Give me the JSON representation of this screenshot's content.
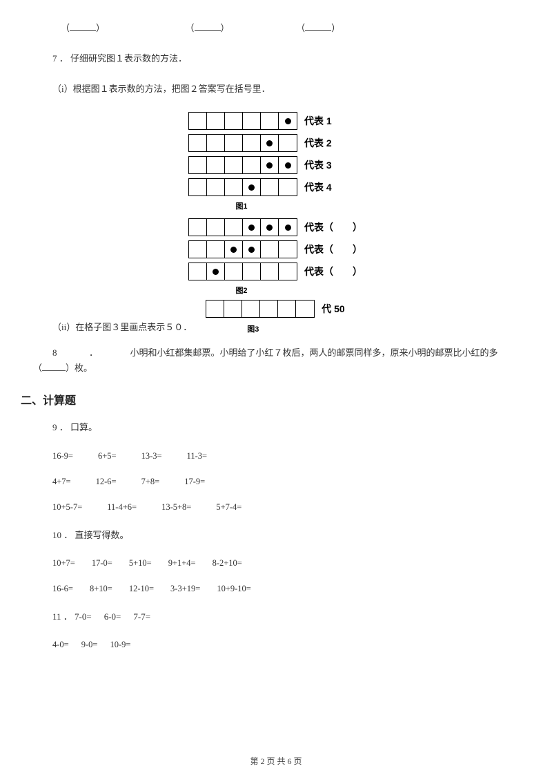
{
  "top_blanks": {
    "open": "（",
    "close": "）"
  },
  "q7": {
    "number": "7",
    "dot": "．",
    "title": "仔细研究图１表示数的方法．",
    "part_i": "（i）根据图１表示数的方法，把图２答案写在括号里．",
    "part_ii": "（ii）在格子图３里画点表示５０．",
    "rows_fig1": [
      {
        "dots": [
          0,
          0,
          0,
          0,
          0,
          1
        ],
        "label": "代表 1"
      },
      {
        "dots": [
          0,
          0,
          0,
          0,
          1,
          0
        ],
        "label": "代表 2"
      },
      {
        "dots": [
          0,
          0,
          0,
          0,
          1,
          1
        ],
        "label": "代表 3"
      },
      {
        "dots": [
          0,
          0,
          0,
          1,
          0,
          0
        ],
        "label": "代表 4"
      }
    ],
    "caption1": "图1",
    "rows_fig2": [
      {
        "dots": [
          0,
          0,
          0,
          1,
          1,
          1
        ],
        "label": "代表（　　）"
      },
      {
        "dots": [
          0,
          0,
          1,
          1,
          0,
          0
        ],
        "label": "代表（　　）"
      },
      {
        "dots": [
          0,
          1,
          0,
          0,
          0,
          0
        ],
        "label": "代表（　　）"
      }
    ],
    "caption2": "图2",
    "row_fig3": {
      "dots": [
        0,
        0,
        0,
        0,
        0,
        0
      ],
      "label": "代 50"
    },
    "caption3": "图3"
  },
  "q8": {
    "number": "8",
    "dot": "．",
    "text_before": "小明和小红都集邮票。小明给了小红７枚后，两人的邮票同样多，原来小明的邮票比小红的多",
    "text_after": "）枚。",
    "open": "（"
  },
  "section2": "二、计算题",
  "q9": {
    "number": "9",
    "dot": "．",
    "title": "口算。",
    "rows": [
      [
        "16-9=",
        "6+5=",
        "13-3=",
        "11-3="
      ],
      [
        "4+7=",
        "12-6=",
        "7+8=",
        "17-9="
      ],
      [
        "10+5-7=",
        "11-4+6=",
        "13-5+8=",
        "5+7-4="
      ]
    ]
  },
  "q10": {
    "number": "10",
    "dot": "．",
    "title": "直接写得数。",
    "rows": [
      [
        "10+7=",
        "17-0=",
        "5+10=",
        "9+1+4=",
        "8-2+10="
      ],
      [
        "16-6=",
        "8+10=",
        "12-10=",
        "3-3+19=",
        "10+9-10="
      ]
    ]
  },
  "q11": {
    "number": "11",
    "dot": "．",
    "row1": [
      "7-0=",
      "6-0=",
      "7-7="
    ],
    "row2": [
      "4-0=",
      "9-0=",
      "10-9="
    ]
  },
  "footer": "第 2 页 共 6 页"
}
